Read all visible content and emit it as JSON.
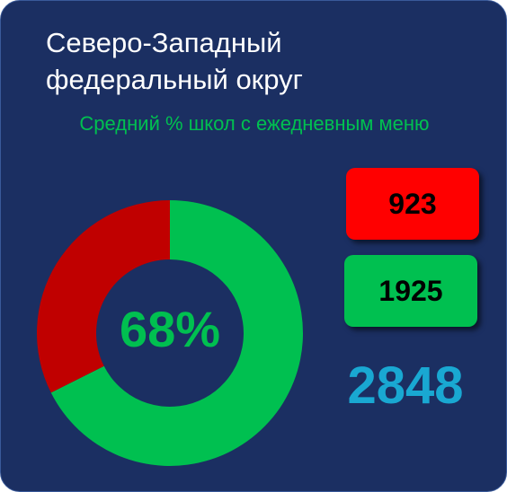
{
  "chart_data": {
    "type": "pie",
    "title": "Северо-Западный федеральный округ",
    "subtitle": "Средний % школ с ежедневным меню",
    "values": [
      923,
      1925
    ],
    "colors": [
      "#c00000",
      "#00c050"
    ],
    "box_colors": [
      "#ff0000",
      "#00c050"
    ],
    "center_label": "68%",
    "total": 2848
  }
}
